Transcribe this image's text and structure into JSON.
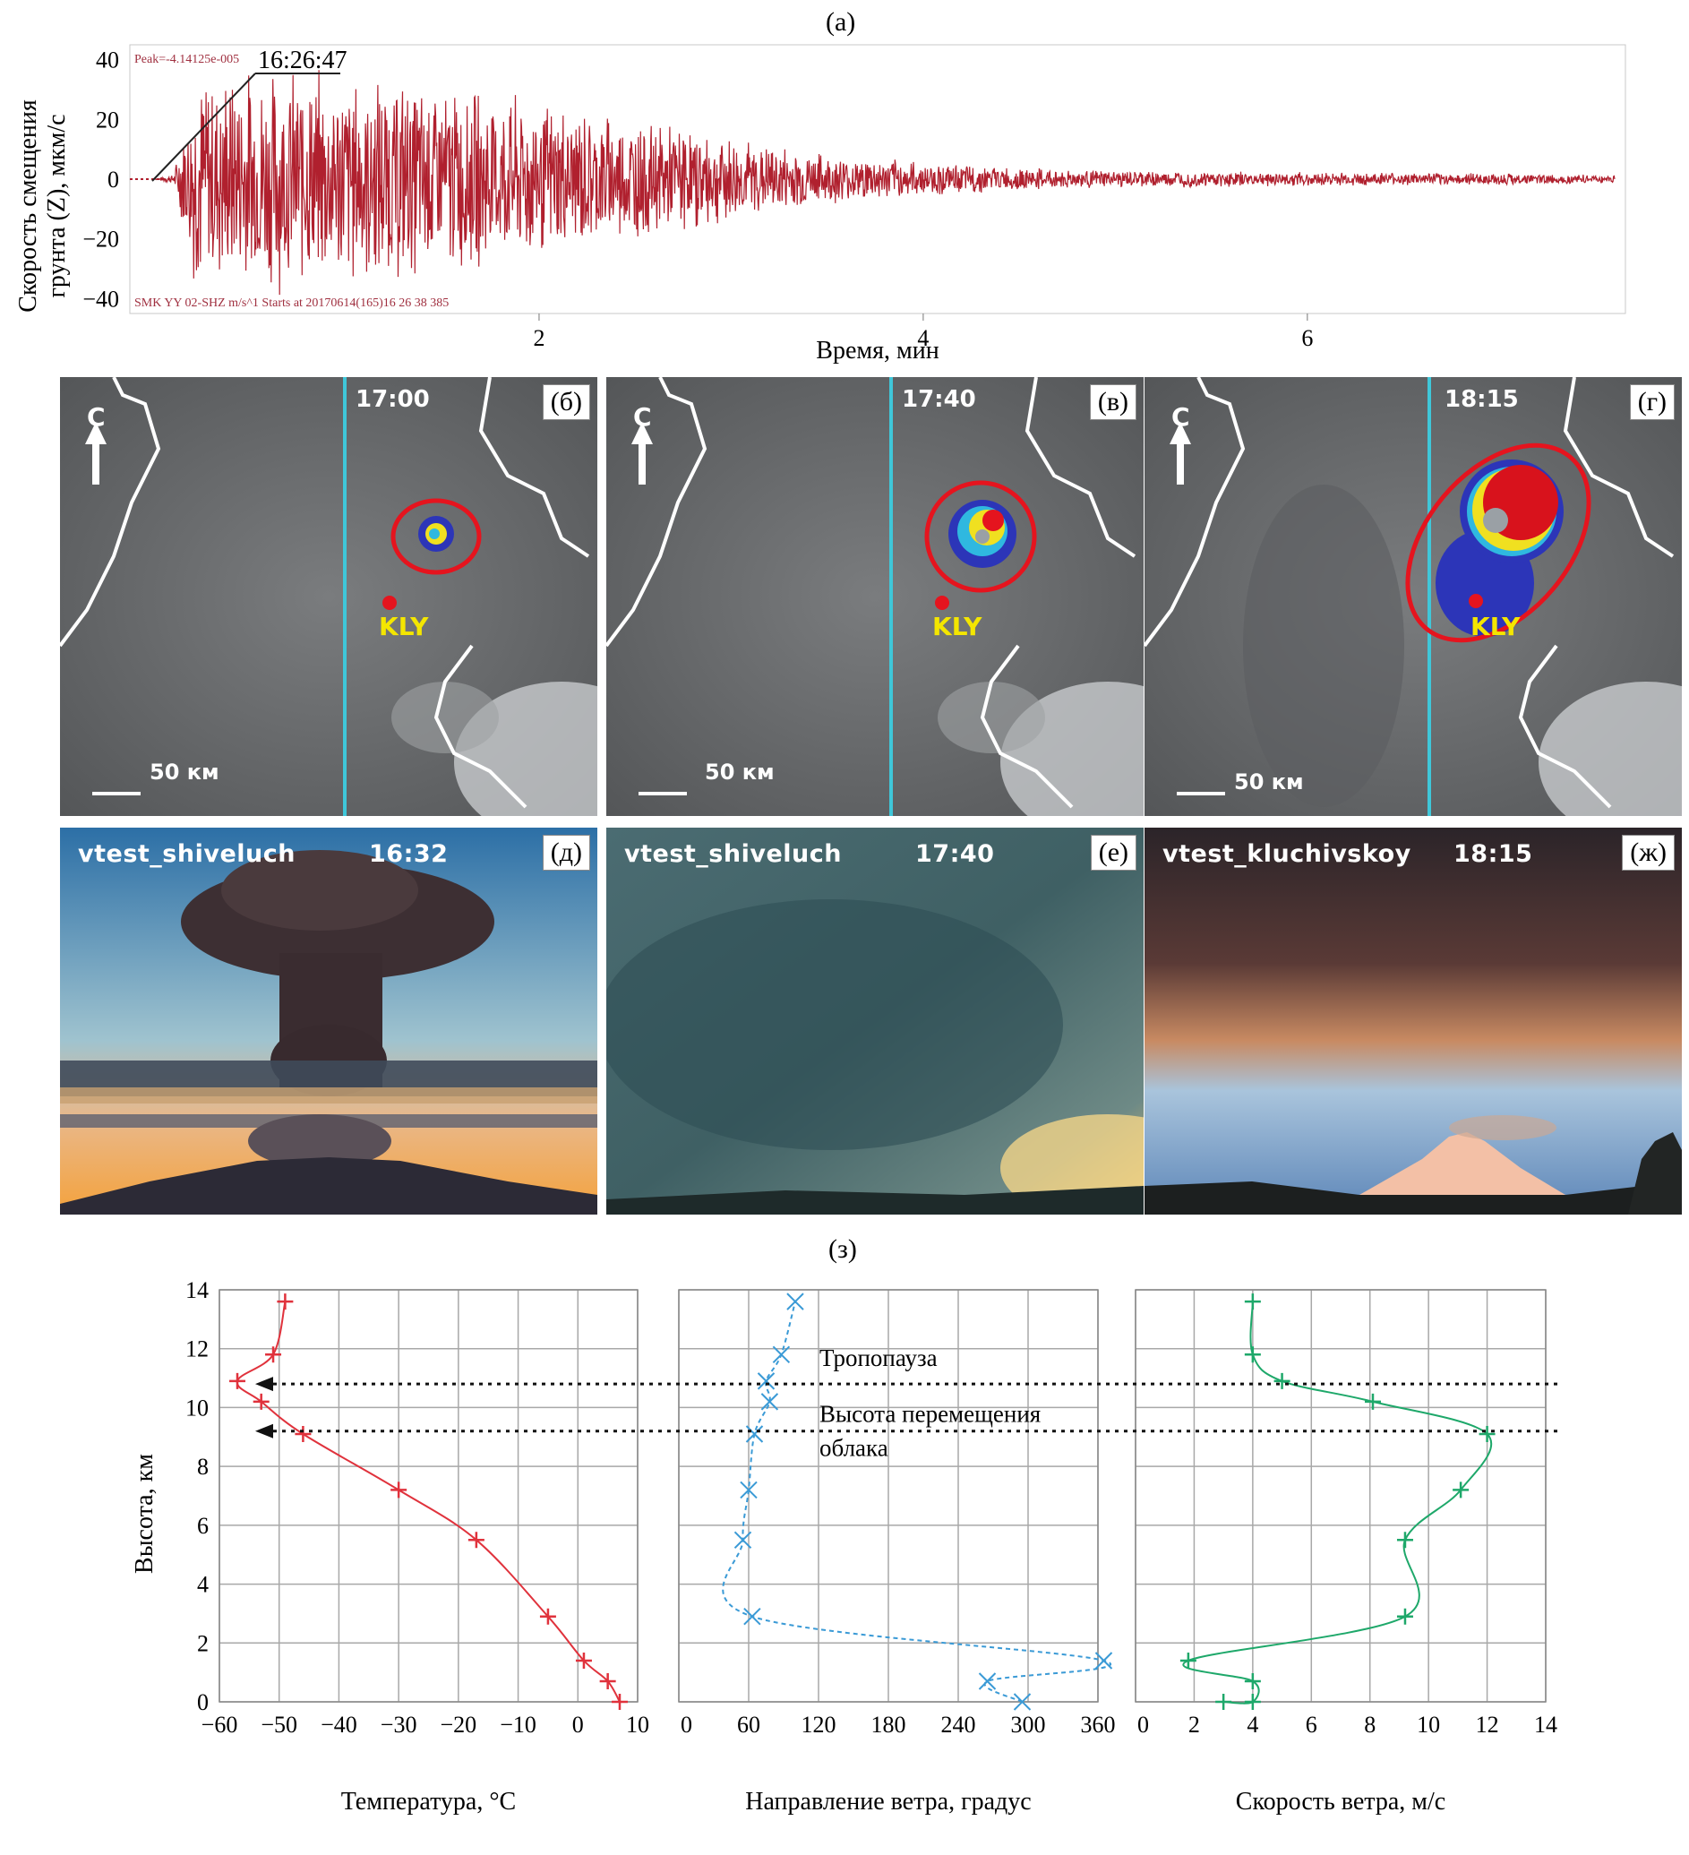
{
  "panel_a": {
    "label": "(a)",
    "ylabel_line1": "Скорость смещения",
    "ylabel_line2": "грунта (Z), мкм/с",
    "xlabel": "Время, мин",
    "peak_text": "Peak=-4.14125e-005",
    "station_text": "SMK YY 02-SHZ  m/s^1 Starts at 20170614(165)16 26 38 385",
    "start_time": "16:26:47",
    "y_ticks": [
      "40",
      "20",
      "0",
      "−20",
      "−40"
    ],
    "x_ticks": [
      "2",
      "4",
      "6"
    ]
  },
  "satellite_panels": [
    {
      "tag": "(б)",
      "time": "17:00",
      "north": "С",
      "scale": "50 км",
      "station": "KLY"
    },
    {
      "tag": "(в)",
      "time": "17:40",
      "north": "С",
      "scale": "50 км",
      "station": "KLY"
    },
    {
      "tag": "(г)",
      "time": "18:15",
      "north": "С",
      "scale": "50 км",
      "station": "KLY"
    }
  ],
  "photo_panels": [
    {
      "tag": "(д)",
      "camera": "vtest_shiveluch",
      "time": "16:32"
    },
    {
      "tag": "(е)",
      "camera": "vtest_shiveluch",
      "time": "17:40"
    },
    {
      "tag": "(ж)",
      "camera": "vtest_kluchivskoy",
      "time": "18:15"
    }
  ],
  "panel_z": {
    "label": "(з)",
    "ylabel": "Высота, км",
    "annotations": {
      "tropopause": "Тропопауза",
      "cloud_line1": "Высота перемещения",
      "cloud_line2": "облака"
    }
  },
  "chart_data": [
    {
      "type": "line",
      "ylabel": "Скорость смещения грунта (Z), мкм/с",
      "xlabel": "Время, мин",
      "ylim": [
        -45,
        45
      ],
      "xlim": [
        0,
        7.6
      ],
      "y_ticks": [
        40,
        20,
        0,
        -20,
        -40
      ],
      "x_ticks": [
        2,
        4,
        6
      ],
      "series": [
        {
          "name": "SMK YY 02-SHZ",
          "color": "#b0202e",
          "envelope": {
            "t": [
              0,
              0.1,
              0.2,
              0.5,
              1.0,
              1.5,
              2.0,
              2.5,
              3.0,
              3.5,
              4.0,
              4.5,
              5.0,
              6.0,
              7.0,
              7.6
            ],
            "amplitude": [
              0,
              2,
              38,
              40,
              38,
              34,
              28,
              22,
              15,
              9,
              6,
              4,
              3,
              2.5,
              2,
              1.5
            ]
          }
        }
      ]
    },
    {
      "type": "line",
      "xlabel": "Температура, °C",
      "ylabel": "Высота, км",
      "xlim": [
        -60,
        10
      ],
      "ylim": [
        0,
        14
      ],
      "x_ticks": [
        -60,
        -50,
        -40,
        -30,
        -20,
        -10,
        0,
        10
      ],
      "y_ticks": [
        0,
        2,
        4,
        6,
        8,
        10,
        12,
        14
      ],
      "grid": true,
      "series": [
        {
          "color": "#e0323c",
          "x": [
            7,
            5,
            1,
            -5,
            -17,
            -30,
            -46,
            -53,
            -57,
            -51,
            -49
          ],
          "y": [
            0,
            0.7,
            1.4,
            2.9,
            5.5,
            7.2,
            9.1,
            10.2,
            10.9,
            11.8,
            13.6
          ]
        }
      ]
    },
    {
      "type": "line",
      "xlabel": "Направление ветра, градус",
      "xlim": [
        0,
        360
      ],
      "ylim": [
        0,
        14
      ],
      "x_ticks": [
        0,
        60,
        120,
        180,
        240,
        300,
        360
      ],
      "y_ticks": [
        0,
        2,
        4,
        6,
        8,
        10,
        12,
        14
      ],
      "grid": true,
      "series": [
        {
          "color": "#3a9ad6",
          "x": [
            295,
            265,
            365,
            63,
            55,
            60,
            65,
            78,
            75,
            88,
            100
          ],
          "y": [
            0,
            0.7,
            1.4,
            2.9,
            5.5,
            7.2,
            9.1,
            10.2,
            10.9,
            11.8,
            13.6
          ]
        }
      ]
    },
    {
      "type": "line",
      "xlabel": "Скорость ветра, м/с",
      "xlim": [
        0,
        14
      ],
      "ylim": [
        0,
        14
      ],
      "x_ticks": [
        0,
        2,
        4,
        6,
        8,
        10,
        12,
        14
      ],
      "y_ticks": [
        0,
        2,
        4,
        6,
        8,
        10,
        12,
        14
      ],
      "grid": true,
      "series": [
        {
          "color": "#1ea86a",
          "x": [
            3,
            4,
            4,
            1.8,
            9.2,
            9.2,
            11.1,
            12,
            8.1,
            5,
            4,
            4
          ],
          "y": [
            0,
            0,
            0.7,
            1.4,
            2.9,
            5.5,
            7.2,
            9.1,
            10.2,
            10.9,
            11.8,
            13.6
          ]
        }
      ]
    }
  ]
}
